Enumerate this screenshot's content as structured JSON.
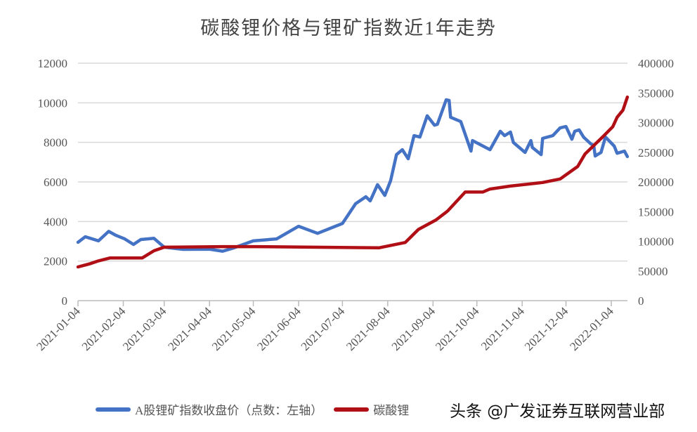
{
  "chart_data": {
    "type": "line",
    "title": "碳酸锂价格与锂矿指数近1年走势",
    "y_left": {
      "ylim": [
        0,
        12000
      ],
      "ticks": [
        0,
        2000,
        4000,
        6000,
        8000,
        10000,
        12000
      ]
    },
    "y_right": {
      "ylim": [
        0,
        400000
      ],
      "ticks": [
        0,
        50000,
        100000,
        150000,
        200000,
        250000,
        300000,
        350000,
        400000
      ]
    },
    "x_ticks": [
      "2021-01-04",
      "2021-02-04",
      "2021-03-04",
      "2021-04-04",
      "2021-05-04",
      "2021-06-04",
      "2021-07-04",
      "2021-08-04",
      "2021-09-04",
      "2021-10-04",
      "2021-11-04",
      "2021-12-04",
      "2022-01-04"
    ],
    "grid": "horizontal",
    "legend_position": "bottom",
    "series": [
      {
        "name": "A股锂矿指数收盘价（点数：左轴）",
        "axis": "left",
        "color": "#4472c4",
        "x": [
          "2021-01-04",
          "2021-01-09",
          "2021-01-18",
          "2021-01-25",
          "2021-01-30",
          "2021-02-05",
          "2021-02-11",
          "2021-02-16",
          "2021-02-25",
          "2021-03-04",
          "2021-03-17",
          "2021-04-04",
          "2021-04-13",
          "2021-04-20",
          "2021-05-04",
          "2021-05-20",
          "2021-06-04",
          "2021-06-17",
          "2021-07-04",
          "2021-07-13",
          "2021-07-20",
          "2021-07-23",
          "2021-07-28",
          "2021-08-02",
          "2021-08-06",
          "2021-08-10",
          "2021-08-14",
          "2021-08-18",
          "2021-08-22",
          "2021-08-26",
          "2021-08-31",
          "2021-09-05",
          "2021-09-07",
          "2021-09-13",
          "2021-09-15",
          "2021-09-16",
          "2021-09-23",
          "2021-09-30",
          "2021-10-01",
          "2021-10-13",
          "2021-10-20",
          "2021-10-23",
          "2021-10-27",
          "2021-10-29",
          "2021-11-06",
          "2021-11-10",
          "2021-11-11",
          "2021-11-17",
          "2021-11-18",
          "2021-11-25",
          "2021-11-30",
          "2021-12-04",
          "2021-12-08",
          "2021-12-10",
          "2021-12-13",
          "2021-12-16",
          "2021-12-21",
          "2021-12-23",
          "2021-12-24",
          "2021-12-28",
          "2021-12-31",
          "2022-01-06",
          "2022-01-08",
          "2022-01-13",
          "2022-01-15"
        ],
        "values": [
          2950,
          3230,
          3020,
          3500,
          3300,
          3120,
          2840,
          3090,
          3150,
          2700,
          2590,
          2600,
          2500,
          2650,
          3020,
          3120,
          3760,
          3400,
          3900,
          4900,
          5250,
          5040,
          5860,
          5320,
          6070,
          7380,
          7630,
          7170,
          8340,
          8270,
          9340,
          8870,
          8910,
          10150,
          10120,
          9270,
          9050,
          7560,
          8090,
          7630,
          8560,
          8340,
          8520,
          7990,
          7490,
          8090,
          7740,
          7380,
          8200,
          8340,
          8730,
          8800,
          8160,
          8560,
          8630,
          8270,
          7920,
          7850,
          7310,
          7490,
          8270,
          7810,
          7450,
          7560,
          7280
        ]
      },
      {
        "name": "碳酸锂",
        "axis": "right",
        "color": "#b00f15",
        "x": [
          "2021-01-04",
          "2021-01-12",
          "2021-01-18",
          "2021-01-26",
          "2021-02-17",
          "2021-02-25",
          "2021-03-04",
          "2021-04-13",
          "2021-05-04",
          "2021-07-29",
          "2021-08-16",
          "2021-08-25",
          "2021-09-06",
          "2021-09-14",
          "2021-09-26",
          "2021-10-08",
          "2021-10-13",
          "2021-10-27",
          "2021-11-18",
          "2021-11-30",
          "2021-12-12",
          "2021-12-17",
          "2021-12-30",
          "2022-01-05",
          "2022-01-08",
          "2022-01-12",
          "2022-01-15"
        ],
        "values": [
          56800,
          62000,
          67000,
          72000,
          72000,
          84000,
          90000,
          91000,
          91000,
          89000,
          98000,
          120000,
          136000,
          151000,
          183000,
          183000,
          188000,
          193000,
          199000,
          205000,
          226000,
          247000,
          278000,
          293000,
          309000,
          321000,
          343000
        ]
      }
    ]
  },
  "watermark": "头条 @广发证券互联网营业部"
}
